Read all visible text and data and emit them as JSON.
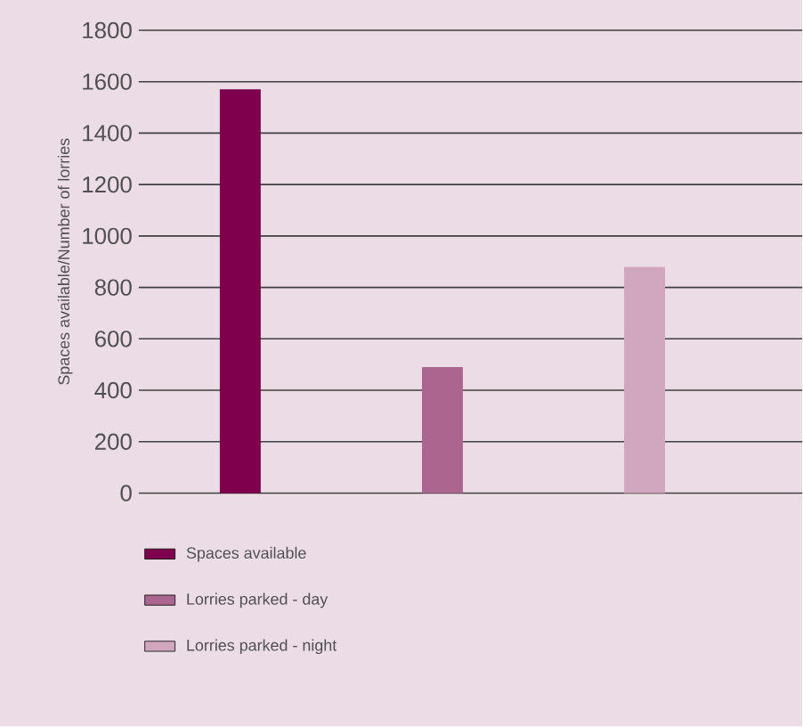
{
  "chart_data": {
    "type": "bar",
    "ylabel": "Spaces available/Number of lorries",
    "categories": [
      null,
      null,
      null
    ],
    "series": [
      {
        "name": "Spaces available",
        "color": "#7f004c",
        "values": [
          1570,
          null,
          null
        ]
      },
      {
        "name": "Lorries parked - day",
        "color": "#ab6690",
        "values": [
          null,
          490,
          null
        ]
      },
      {
        "name": "Lorries parked - night",
        "color": "#d1a7bf",
        "values": [
          null,
          null,
          880
        ]
      }
    ],
    "ylim": [
      0,
      1800
    ],
    "yticks": [
      0,
      200,
      400,
      600,
      800,
      1000,
      1200,
      1400,
      1600,
      1800
    ],
    "grid": "y",
    "legend": "bottom"
  }
}
